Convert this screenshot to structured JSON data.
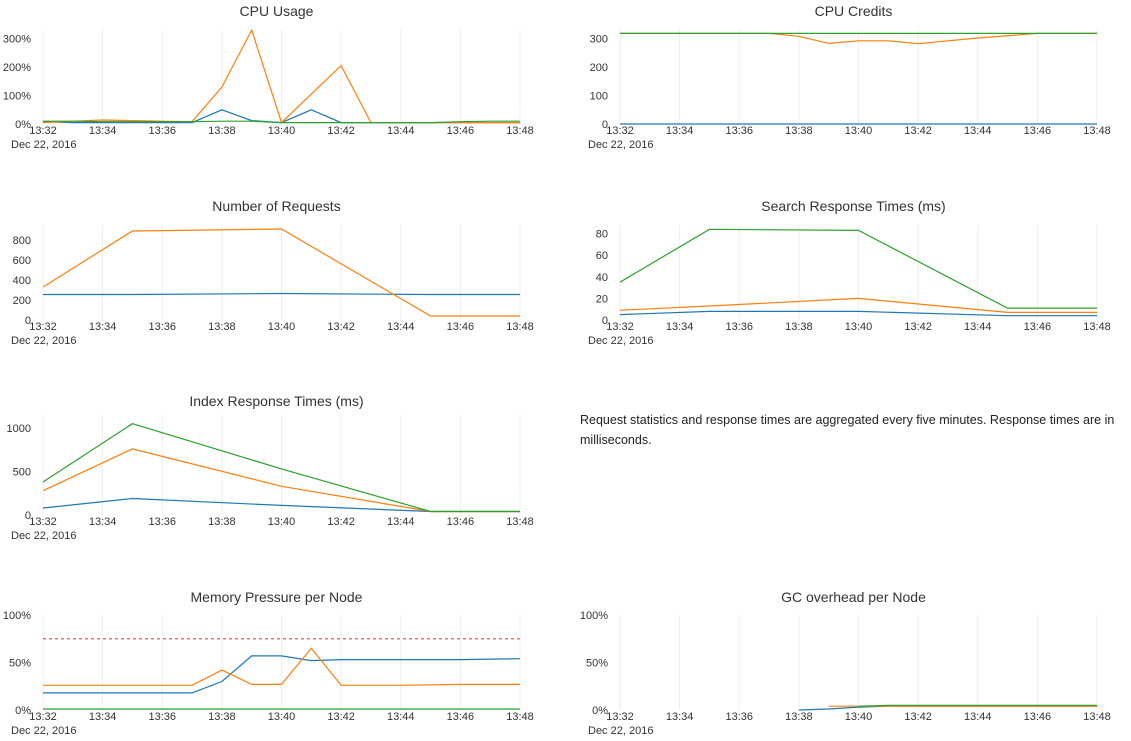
{
  "chart_data": [
    {
      "type": "line",
      "title": "CPU Usage",
      "date": "Dec 22, 2016",
      "xlim": [
        "13:32",
        "13:48"
      ],
      "xticks": [
        "13:32",
        "13:34",
        "13:36",
        "13:38",
        "13:40",
        "13:42",
        "13:44",
        "13:46",
        "13:48"
      ],
      "ylim": [
        0,
        330
      ],
      "yticks": [
        {
          "value": 0,
          "label": "0%"
        },
        {
          "value": 100,
          "label": "100%"
        },
        {
          "value": 200,
          "label": "200%"
        },
        {
          "value": 300,
          "label": "300%"
        }
      ],
      "series": [
        {
          "color": "#1f77b4",
          "x": [
            "13:32",
            "13:33",
            "13:34",
            "13:35",
            "13:36",
            "13:37",
            "13:38",
            "13:39",
            "13:40",
            "13:41",
            "13:42",
            "13:43",
            "13:44",
            "13:45",
            "13:46",
            "13:47",
            "13:48"
          ],
          "values": [
            8,
            5,
            5,
            5,
            5,
            5,
            50,
            12,
            5,
            50,
            5,
            5,
            5,
            5,
            5,
            5,
            5
          ]
        },
        {
          "color": "#ff7f0e",
          "x": [
            "13:32",
            "13:33",
            "13:34",
            "13:35",
            "13:36",
            "13:37",
            "13:38",
            "13:39",
            "13:40",
            "13:41",
            "13:42",
            "13:43",
            "13:44",
            "13:45",
            "13:46",
            "13:47",
            "13:48"
          ],
          "values": [
            5,
            10,
            14,
            12,
            10,
            8,
            130,
            330,
            5,
            105,
            205,
            5,
            5,
            5,
            5,
            5,
            5
          ]
        },
        {
          "color": "#2ca02c",
          "x": [
            "13:32",
            "13:33",
            "13:34",
            "13:35",
            "13:36",
            "13:37",
            "13:38",
            "13:39",
            "13:40",
            "13:41",
            "13:42",
            "13:43",
            "13:44",
            "13:45",
            "13:46",
            "13:47",
            "13:48"
          ],
          "values": [
            10,
            10,
            8,
            8,
            8,
            8,
            10,
            10,
            5,
            5,
            5,
            5,
            5,
            5,
            8,
            10,
            10
          ]
        }
      ]
    },
    {
      "type": "line",
      "title": "CPU Credits",
      "date": "Dec 22, 2016",
      "xlim": [
        "13:32",
        "13:48"
      ],
      "xticks": [
        "13:32",
        "13:34",
        "13:36",
        "13:38",
        "13:40",
        "13:42",
        "13:44",
        "13:46",
        "13:48"
      ],
      "ylim": [
        0,
        330
      ],
      "yticks": [
        0,
        100,
        200,
        300
      ],
      "series": [
        {
          "color": "#1f77b4",
          "x": [
            "13:32",
            "13:48"
          ],
          "values": [
            0,
            0
          ]
        },
        {
          "color": "#ff7f0e",
          "x": [
            "13:32",
            "13:37",
            "13:38",
            "13:39",
            "13:40",
            "13:41",
            "13:42",
            "13:44",
            "13:46",
            "13:48"
          ],
          "values": [
            318,
            318,
            308,
            283,
            292,
            292,
            282,
            302,
            318,
            318
          ]
        },
        {
          "color": "#2ca02c",
          "x": [
            "13:32",
            "13:48"
          ],
          "values": [
            318,
            318
          ]
        }
      ]
    },
    {
      "type": "line",
      "title": "Number of Requests",
      "date": "Dec 22, 2016",
      "xlim": [
        "13:32",
        "13:48"
      ],
      "xticks": [
        "13:32",
        "13:34",
        "13:36",
        "13:38",
        "13:40",
        "13:42",
        "13:44",
        "13:46",
        "13:48"
      ],
      "ylim": [
        0,
        950
      ],
      "yticks": [
        0,
        200,
        400,
        600,
        800
      ],
      "series": [
        {
          "color": "#1f77b4",
          "x": [
            "13:32",
            "13:35",
            "13:40",
            "13:45",
            "13:48"
          ],
          "values": [
            255,
            255,
            265,
            255,
            255
          ]
        },
        {
          "color": "#ff7f0e",
          "x": [
            "13:32",
            "13:35",
            "13:40",
            "13:45",
            "13:48"
          ],
          "values": [
            330,
            890,
            910,
            40,
            40
          ]
        }
      ]
    },
    {
      "type": "line",
      "title": "Search Response Times (ms)",
      "date": "Dec 22, 2016",
      "xlim": [
        "13:32",
        "13:48"
      ],
      "xticks": [
        "13:32",
        "13:34",
        "13:36",
        "13:38",
        "13:40",
        "13:42",
        "13:44",
        "13:46",
        "13:48"
      ],
      "ylim": [
        0,
        88
      ],
      "yticks": [
        0,
        20,
        40,
        60,
        80
      ],
      "series": [
        {
          "color": "#1f77b4",
          "x": [
            "13:32",
            "13:35",
            "13:40",
            "13:45",
            "13:48"
          ],
          "values": [
            5,
            8,
            8,
            4,
            4
          ]
        },
        {
          "color": "#ff7f0e",
          "x": [
            "13:32",
            "13:35",
            "13:40",
            "13:45",
            "13:48"
          ],
          "values": [
            9,
            13,
            20,
            7,
            7
          ]
        },
        {
          "color": "#2ca02c",
          "x": [
            "13:32",
            "13:35",
            "13:40",
            "13:45",
            "13:48"
          ],
          "values": [
            35,
            84,
            83,
            11,
            11
          ]
        }
      ]
    },
    {
      "type": "line",
      "title": "Index Response Times (ms)",
      "date": "Dec 22, 2016",
      "xlim": [
        "13:32",
        "13:48"
      ],
      "xticks": [
        "13:32",
        "13:34",
        "13:36",
        "13:38",
        "13:40",
        "13:42",
        "13:44",
        "13:46",
        "13:48"
      ],
      "ylim": [
        0,
        1150
      ],
      "yticks": [
        0,
        500,
        1000
      ],
      "series": [
        {
          "color": "#1f77b4",
          "x": [
            "13:32",
            "13:35",
            "13:40",
            "13:45",
            "13:48"
          ],
          "values": [
            80,
            190,
            110,
            40,
            40
          ]
        },
        {
          "color": "#ff7f0e",
          "x": [
            "13:32",
            "13:35",
            "13:40",
            "13:45",
            "13:48"
          ],
          "values": [
            280,
            760,
            330,
            40,
            40
          ]
        },
        {
          "color": "#2ca02c",
          "x": [
            "13:32",
            "13:35",
            "13:40",
            "13:45",
            "13:48"
          ],
          "values": [
            380,
            1050,
            530,
            40,
            40
          ]
        }
      ]
    },
    {
      "type": "line",
      "title": "Memory Pressure per Node",
      "date": "Dec 22, 2016",
      "xlim": [
        "13:32",
        "13:48"
      ],
      "xticks": [
        "13:32",
        "13:34",
        "13:36",
        "13:38",
        "13:40",
        "13:42",
        "13:44",
        "13:46",
        "13:48"
      ],
      "ylim": [
        0,
        100
      ],
      "yticks": [
        {
          "value": 0,
          "label": "0%"
        },
        {
          "value": 50,
          "label": "50%"
        },
        {
          "value": 100,
          "label": "100%"
        }
      ],
      "series": [
        {
          "color": "#1f77b4",
          "x": [
            "13:32",
            "13:37",
            "13:38",
            "13:39",
            "13:40",
            "13:41",
            "13:42",
            "13:44",
            "13:46",
            "13:48"
          ],
          "values": [
            18,
            18,
            30,
            57,
            57,
            52,
            53,
            53,
            53,
            54
          ]
        },
        {
          "color": "#ff7f0e",
          "x": [
            "13:32",
            "13:37",
            "13:38",
            "13:39",
            "13:40",
            "13:41",
            "13:42",
            "13:44",
            "13:46",
            "13:48"
          ],
          "values": [
            26,
            26,
            42,
            27,
            27,
            65,
            26,
            26,
            27,
            27
          ]
        },
        {
          "color": "#2ca02c",
          "x": [
            "13:32",
            "13:48"
          ],
          "values": [
            1,
            1
          ]
        },
        {
          "color": "#e8473f",
          "dash": true,
          "x": [
            "13:32",
            "13:48"
          ],
          "values": [
            75,
            75
          ]
        }
      ]
    },
    {
      "type": "line",
      "title": "GC overhead per Node",
      "date": "Dec 22, 2016",
      "xlim": [
        "13:32",
        "13:48"
      ],
      "xticks": [
        "13:32",
        "13:34",
        "13:36",
        "13:38",
        "13:40",
        "13:42",
        "13:44",
        "13:46",
        "13:48"
      ],
      "ylim": [
        0,
        100
      ],
      "yticks": [
        {
          "value": 0,
          "label": "0%"
        },
        {
          "value": 50,
          "label": "50%"
        },
        {
          "value": 100,
          "label": "100%"
        }
      ],
      "series": [
        {
          "color": "#1f77b4",
          "x": [
            "13:38",
            "13:39",
            "13:40",
            "13:41",
            "13:42",
            "13:44",
            "13:46",
            "13:48"
          ],
          "values": [
            0,
            1,
            3,
            4,
            4,
            4,
            4,
            4
          ]
        },
        {
          "color": "#ff7f0e",
          "x": [
            "13:39",
            "13:40",
            "13:41",
            "13:42",
            "13:44",
            "13:46",
            "13:48"
          ],
          "values": [
            4,
            4,
            4,
            4,
            4,
            4,
            4
          ]
        },
        {
          "color": "#2ca02c",
          "x": [
            "13:40",
            "13:41",
            "13:42",
            "13:44",
            "13:46",
            "13:48"
          ],
          "values": [
            4,
            5,
            5,
            5,
            5,
            5
          ]
        }
      ]
    }
  ],
  "note": "Request statistics and response times are aggregated every five minutes. Response times are in milliseconds."
}
